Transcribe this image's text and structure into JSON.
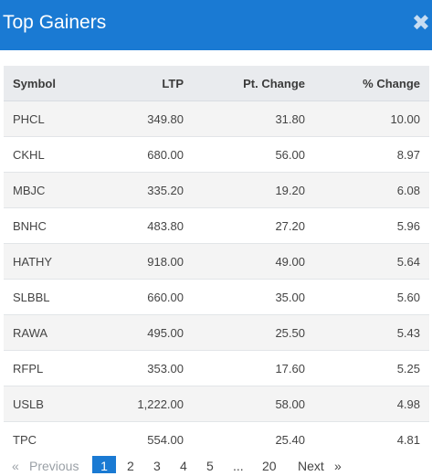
{
  "header": {
    "title": "Top Gainers",
    "close_glyph": "✖",
    "close_icon": "close-icon"
  },
  "table": {
    "columns": [
      "Symbol",
      "LTP",
      "Pt. Change",
      "% Change"
    ],
    "rows": [
      [
        "PHCL",
        "349.80",
        "31.80",
        "10.00"
      ],
      [
        "CKHL",
        "680.00",
        "56.00",
        "8.97"
      ],
      [
        "MBJC",
        "335.20",
        "19.20",
        "6.08"
      ],
      [
        "BNHC",
        "483.80",
        "27.20",
        "5.96"
      ],
      [
        "HATHY",
        "918.00",
        "49.00",
        "5.64"
      ],
      [
        "SLBBL",
        "660.00",
        "35.00",
        "5.60"
      ],
      [
        "RAWA",
        "495.00",
        "25.50",
        "5.43"
      ],
      [
        "RFPL",
        "353.00",
        "17.60",
        "5.25"
      ],
      [
        "USLB",
        "1,222.00",
        "58.00",
        "4.98"
      ],
      [
        "TPC",
        "554.00",
        "25.40",
        "4.81"
      ]
    ]
  },
  "pagination": {
    "prev_arrow": "«",
    "previous": "Previous",
    "pages": [
      "1",
      "2",
      "3",
      "4",
      "5"
    ],
    "ellipsis": "...",
    "last": "20",
    "next": "Next",
    "next_arrow": "»",
    "current": "1"
  },
  "colors": {
    "header_bg": "#1a7ad3",
    "positive": "#2a8a2a",
    "row_alt": "#f4f4f4"
  }
}
